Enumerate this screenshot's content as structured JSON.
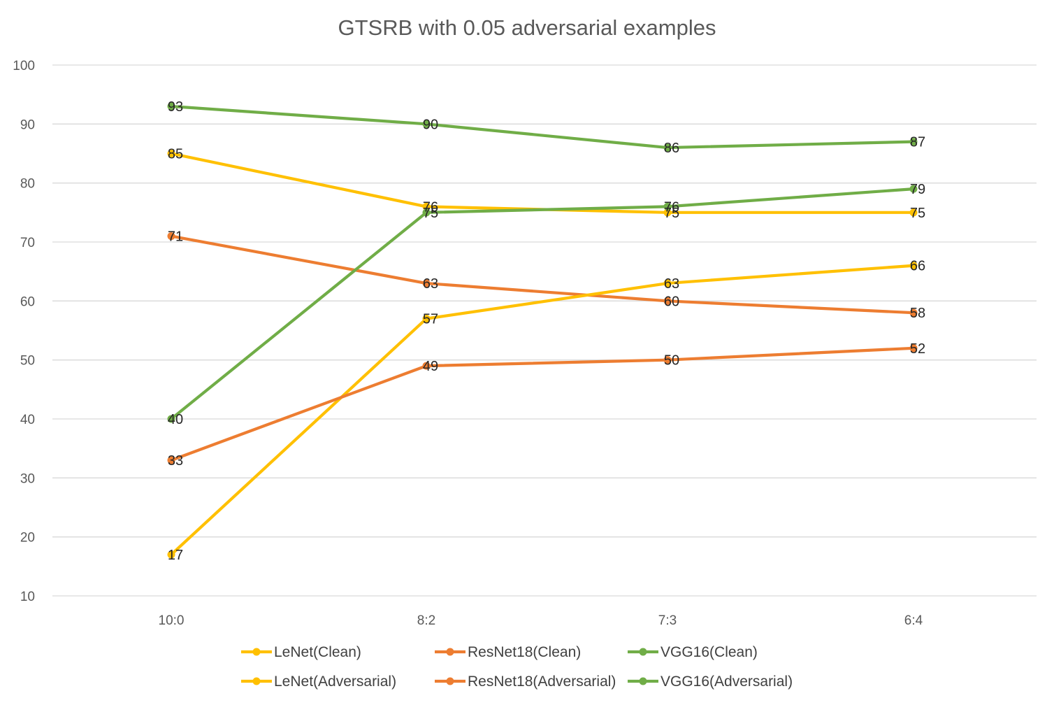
{
  "chart_data": {
    "type": "line",
    "title": "GTSRB with 0.05 adversarial examples",
    "xlabel": "",
    "ylabel": "",
    "categories": [
      "10:0",
      "8:2",
      "7:3",
      "6:4"
    ],
    "ylim": [
      10,
      100
    ],
    "yticks": [
      10,
      20,
      30,
      40,
      50,
      60,
      70,
      80,
      90,
      100
    ],
    "grid": true,
    "legend_position": "bottom",
    "series": [
      {
        "name": "LeNet(Clean)",
        "color": "#FFC000",
        "values": [
          85,
          76,
          75,
          75
        ]
      },
      {
        "name": "ResNet18(Clean)",
        "color": "#ED7D31",
        "values": [
          71,
          63,
          60,
          58
        ]
      },
      {
        "name": "VGG16(Clean)",
        "color": "#70AD47",
        "values": [
          93,
          90,
          86,
          87
        ]
      },
      {
        "name": "LeNet(Adversarial)",
        "color": "#FFC000",
        "values": [
          17,
          57,
          63,
          66
        ]
      },
      {
        "name": "ResNet18(Adversarial)",
        "color": "#ED7D31",
        "values": [
          33,
          49,
          50,
          52
        ]
      },
      {
        "name": "VGG16(Adversarial)",
        "color": "#70AD47",
        "values": [
          40,
          75,
          76,
          79
        ]
      }
    ]
  }
}
